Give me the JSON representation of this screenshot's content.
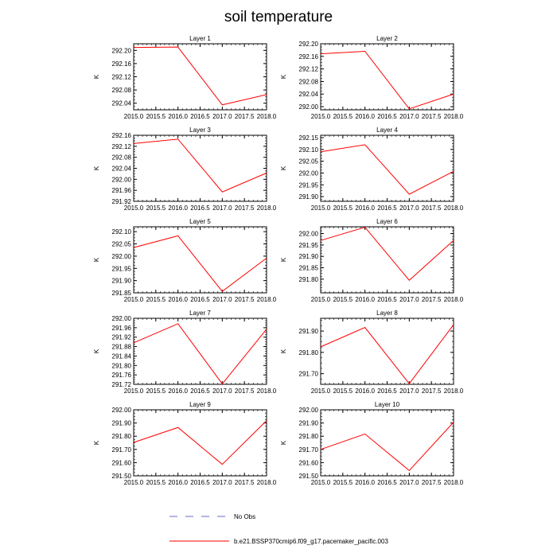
{
  "figure": {
    "title": "soil temperature",
    "legend": [
      {
        "label": "No Obs",
        "style": "dashed",
        "color": "#6a6ad0"
      },
      {
        "label": "b.e21.BSSP370cmip6.f09_g17.pacemaker_pacific.003",
        "style": "solid",
        "color": "#ff0000"
      }
    ]
  },
  "chart_data": [
    {
      "type": "line",
      "title": "Layer 1",
      "ylabel": "K",
      "xlim": [
        2015.0,
        2018.0
      ],
      "ylim": [
        292.02,
        292.22
      ],
      "xticks": [
        2015.0,
        2015.5,
        2016.0,
        2016.5,
        2017.0,
        2017.5,
        2018.0
      ],
      "xtick_labels": [
        "2015.0",
        "2015.5",
        "2016.0",
        "2016.5",
        "2017.0",
        "2017.5",
        "2018.0"
      ],
      "yticks": [
        292.04,
        292.08,
        292.12,
        292.16,
        292.2
      ],
      "ytick_labels": [
        "292.04",
        "292.08",
        "292.12",
        "292.16",
        "292.20"
      ],
      "x": [
        2015,
        2016,
        2017,
        2018
      ],
      "series": [
        {
          "values": [
            292.209,
            292.21,
            292.035,
            292.066
          ],
          "color": "#ff0000"
        }
      ]
    },
    {
      "type": "line",
      "title": "Layer 2",
      "ylabel": "K",
      "xlim": [
        2015.0,
        2018.0
      ],
      "ylim": [
        291.99,
        292.2
      ],
      "xticks": [
        2015.0,
        2015.5,
        2016.0,
        2016.5,
        2017.0,
        2017.5,
        2018.0
      ],
      "xtick_labels": [
        "2015.0",
        "2015.5",
        "2016.0",
        "2016.5",
        "2017.0",
        "2017.5",
        "2018.0"
      ],
      "yticks": [
        292.0,
        292.04,
        292.08,
        292.12,
        292.16,
        292.2
      ],
      "ytick_labels": [
        "292.00",
        "292.04",
        "292.08",
        "292.12",
        "292.16",
        "292.20"
      ],
      "x": [
        2015,
        2016,
        2017,
        2018
      ],
      "series": [
        {
          "values": [
            292.168,
            292.176,
            291.993,
            292.04
          ],
          "color": "#ff0000"
        }
      ]
    },
    {
      "type": "line",
      "title": "Layer 3",
      "ylabel": "K",
      "xlim": [
        2015.0,
        2018.0
      ],
      "ylim": [
        291.92,
        292.16
      ],
      "xticks": [
        2015.0,
        2015.5,
        2016.0,
        2016.5,
        2017.0,
        2017.5,
        2018.0
      ],
      "xtick_labels": [
        "2015.0",
        "2015.5",
        "2016.0",
        "2016.5",
        "2017.0",
        "2017.5",
        "2018.0"
      ],
      "yticks": [
        291.92,
        291.96,
        292.0,
        292.04,
        292.08,
        292.12,
        292.16
      ],
      "ytick_labels": [
        "291.92",
        "291.96",
        "292.00",
        "292.04",
        "292.08",
        "292.12",
        "292.16"
      ],
      "x": [
        2015,
        2016,
        2017,
        2018
      ],
      "series": [
        {
          "values": [
            292.13,
            292.146,
            291.954,
            292.023
          ],
          "color": "#ff0000"
        }
      ]
    },
    {
      "type": "line",
      "title": "Layer 4",
      "ylabel": "K",
      "xlim": [
        2015.0,
        2018.0
      ],
      "ylim": [
        291.88,
        292.16
      ],
      "xticks": [
        2015.0,
        2015.5,
        2016.0,
        2016.5,
        2017.0,
        2017.5,
        2018.0
      ],
      "xtick_labels": [
        "2015.0",
        "2015.5",
        "2016.0",
        "2016.5",
        "2017.0",
        "2017.5",
        "2018.0"
      ],
      "yticks": [
        291.9,
        291.95,
        292.0,
        292.05,
        292.1,
        292.15
      ],
      "ytick_labels": [
        "291.90",
        "291.95",
        "292.00",
        "292.05",
        "292.10",
        "292.15"
      ],
      "x": [
        2015,
        2016,
        2017,
        2018
      ],
      "series": [
        {
          "values": [
            292.09,
            292.12,
            291.91,
            292.007
          ],
          "color": "#ff0000"
        }
      ]
    },
    {
      "type": "line",
      "title": "Layer 5",
      "ylabel": "K",
      "xlim": [
        2015.0,
        2018.0
      ],
      "ylim": [
        291.85,
        292.12
      ],
      "xticks": [
        2015.0,
        2015.5,
        2016.0,
        2016.5,
        2017.0,
        2017.5,
        2018.0
      ],
      "xtick_labels": [
        "2015.0",
        "2015.5",
        "2016.0",
        "2016.5",
        "2017.0",
        "2017.5",
        "2018.0"
      ],
      "yticks": [
        291.85,
        291.9,
        291.95,
        292.0,
        292.05,
        292.1
      ],
      "ytick_labels": [
        "291.85",
        "291.90",
        "291.95",
        "292.00",
        "292.05",
        "292.10"
      ],
      "x": [
        2015,
        2016,
        2017,
        2018
      ],
      "series": [
        {
          "values": [
            292.035,
            292.083,
            291.856,
            291.992
          ],
          "color": "#ff0000"
        }
      ]
    },
    {
      "type": "line",
      "title": "Layer 6",
      "ylabel": "K",
      "xlim": [
        2015.0,
        2018.0
      ],
      "ylim": [
        291.74,
        292.03
      ],
      "xticks": [
        2015.0,
        2015.5,
        2016.0,
        2016.5,
        2017.0,
        2017.5,
        2018.0
      ],
      "xtick_labels": [
        "2015.0",
        "2015.5",
        "2016.0",
        "2016.5",
        "2017.0",
        "2017.5",
        "2018.0"
      ],
      "yticks": [
        291.8,
        291.85,
        291.9,
        291.95,
        292.0
      ],
      "ytick_labels": [
        "291.80",
        "291.85",
        "291.90",
        "291.95",
        "292.00"
      ],
      "x": [
        2015,
        2016,
        2017,
        2018
      ],
      "series": [
        {
          "values": [
            291.97,
            292.028,
            291.795,
            291.97
          ],
          "color": "#ff0000"
        }
      ]
    },
    {
      "type": "line",
      "title": "Layer 7",
      "ylabel": "K",
      "xlim": [
        2015.0,
        2018.0
      ],
      "ylim": [
        291.72,
        292.0
      ],
      "xticks": [
        2015.0,
        2015.5,
        2016.0,
        2016.5,
        2017.0,
        2017.5,
        2018.0
      ],
      "xtick_labels": [
        "2015.0",
        "2015.5",
        "2016.0",
        "2016.5",
        "2017.0",
        "2017.5",
        "2018.0"
      ],
      "yticks": [
        291.72,
        291.76,
        291.8,
        291.84,
        291.88,
        291.92,
        291.96,
        292.0
      ],
      "ytick_labels": [
        "291.72",
        "291.76",
        "291.80",
        "291.84",
        "291.88",
        "291.92",
        "291.96",
        "292.00"
      ],
      "x": [
        2015,
        2016,
        2017,
        2018
      ],
      "series": [
        {
          "values": [
            291.896,
            291.977,
            291.722,
            291.954
          ],
          "color": "#ff0000"
        }
      ]
    },
    {
      "type": "line",
      "title": "Layer 8",
      "ylabel": "K",
      "xlim": [
        2015.0,
        2018.0
      ],
      "ylim": [
        291.65,
        291.96
      ],
      "xticks": [
        2015.0,
        2015.5,
        2016.0,
        2016.5,
        2017.0,
        2017.5,
        2018.0
      ],
      "xtick_labels": [
        "2015.0",
        "2015.5",
        "2016.0",
        "2016.5",
        "2017.0",
        "2017.5",
        "2018.0"
      ],
      "yticks": [
        291.7,
        291.8,
        291.9
      ],
      "ytick_labels": [
        "291.70",
        "291.80",
        "291.90"
      ],
      "x": [
        2015,
        2016,
        2017,
        2018
      ],
      "series": [
        {
          "values": [
            291.826,
            291.917,
            291.653,
            291.93
          ],
          "color": "#ff0000"
        }
      ]
    },
    {
      "type": "line",
      "title": "Layer 9",
      "ylabel": "K",
      "xlim": [
        2015.0,
        2018.0
      ],
      "ylim": [
        291.5,
        292.0
      ],
      "xticks": [
        2015.0,
        2015.5,
        2016.0,
        2016.5,
        2017.0,
        2017.5,
        2018.0
      ],
      "xtick_labels": [
        "2015.0",
        "2015.5",
        "2016.0",
        "2016.5",
        "2017.0",
        "2017.5",
        "2018.0"
      ],
      "yticks": [
        291.5,
        291.6,
        291.7,
        291.8,
        291.9,
        292.0
      ],
      "ytick_labels": [
        "291.50",
        "291.60",
        "291.70",
        "291.80",
        "291.90",
        "292.00"
      ],
      "x": [
        2015,
        2016,
        2017,
        2018
      ],
      "series": [
        {
          "values": [
            291.753,
            291.866,
            291.587,
            291.918
          ],
          "color": "#ff0000"
        }
      ]
    },
    {
      "type": "line",
      "title": "Layer 10",
      "ylabel": "K",
      "xlim": [
        2015.0,
        2018.0
      ],
      "ylim": [
        291.5,
        292.0
      ],
      "xticks": [
        2015.0,
        2015.5,
        2016.0,
        2016.5,
        2017.0,
        2017.5,
        2018.0
      ],
      "xtick_labels": [
        "2015.0",
        "2015.5",
        "2016.0",
        "2016.5",
        "2017.0",
        "2017.5",
        "2018.0"
      ],
      "yticks": [
        291.5,
        291.6,
        291.7,
        291.8,
        291.9,
        292.0
      ],
      "ytick_labels": [
        "291.50",
        "291.60",
        "291.70",
        "291.80",
        "291.90",
        "292.00"
      ],
      "x": [
        2015,
        2016,
        2017,
        2018
      ],
      "series": [
        {
          "values": [
            291.7,
            291.817,
            291.54,
            291.906
          ],
          "color": "#ff0000"
        }
      ]
    }
  ]
}
